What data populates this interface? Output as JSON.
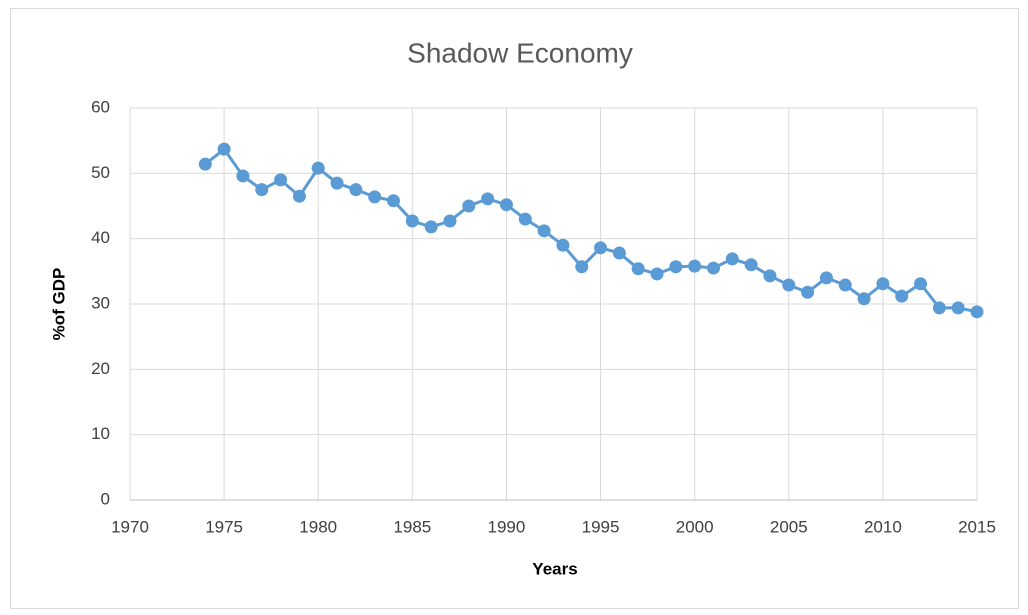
{
  "chart_data": {
    "type": "line",
    "title": "Shadow Economy",
    "x_label": "Years",
    "y_label": "%of GDP",
    "x": [
      1974,
      1975,
      1976,
      1977,
      1978,
      1979,
      1980,
      1981,
      1982,
      1983,
      1984,
      1985,
      1986,
      1987,
      1988,
      1989,
      1990,
      1991,
      1992,
      1993,
      1994,
      1995,
      1996,
      1997,
      1998,
      1999,
      2000,
      2001,
      2002,
      2003,
      2004,
      2005,
      2006,
      2007,
      2008,
      2009,
      2010,
      2011,
      2012,
      2013,
      2014,
      2015
    ],
    "series": [
      {
        "name": "Shadow Economy",
        "color": "#5b9bd5",
        "values": [
          51.4,
          53.7,
          49.6,
          47.5,
          49.0,
          46.5,
          50.8,
          48.5,
          47.5,
          46.4,
          45.8,
          42.7,
          41.8,
          42.7,
          45.0,
          46.1,
          45.2,
          43.0,
          41.2,
          39.0,
          35.7,
          38.6,
          37.8,
          35.4,
          34.6,
          35.7,
          35.8,
          35.5,
          36.9,
          36.0,
          34.3,
          32.9,
          31.8,
          34.0,
          32.9,
          30.8,
          33.1,
          31.2,
          33.1,
          29.4,
          29.4,
          28.8
        ]
      }
    ],
    "xlim": [
      1970,
      2015
    ],
    "xticks": [
      1970,
      1975,
      1980,
      1985,
      1990,
      1995,
      2000,
      2005,
      2010,
      2015
    ],
    "ylim": [
      0,
      60
    ],
    "yticks": [
      0,
      10,
      20,
      30,
      40,
      50,
      60
    ],
    "grid": true
  }
}
